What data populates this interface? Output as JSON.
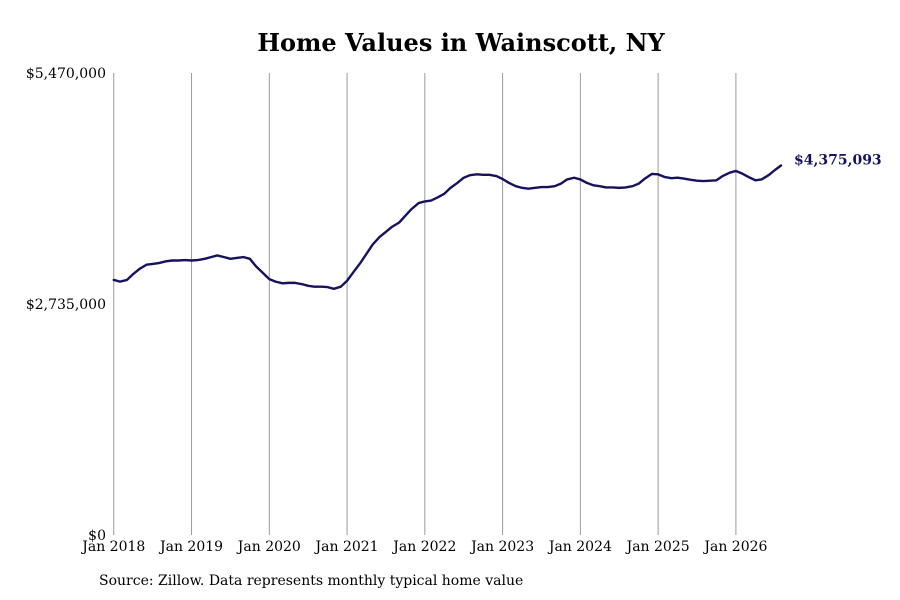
{
  "chart_data": {
    "type": "line",
    "title": "Home Values in Wainscott, NY",
    "xlabel": "",
    "ylabel": "",
    "ylim": [
      0,
      5470000
    ],
    "y_ticks": [
      "$5,470,000",
      "$2,735,000",
      "$0"
    ],
    "y_tick_values": [
      5470000,
      2735000,
      0
    ],
    "x_ticks": [
      "Jan 2018",
      "Jan 2019",
      "Jan 2020",
      "Jan 2021",
      "Jan 2022",
      "Jan 2023",
      "Jan 2024",
      "Jan 2025",
      "Jan 2026"
    ],
    "x_tick_values": [
      2018,
      2019,
      2020,
      2021,
      2022,
      2023,
      2024,
      2025,
      2026
    ],
    "xlim": [
      2017.9,
      2026.85
    ],
    "grid": "vertical",
    "line_color": "#15135e",
    "end_label": "$4,375,093",
    "series": [
      {
        "values": [
          [
            2018.0,
            3020000
          ],
          [
            2018.08,
            3000000
          ],
          [
            2018.17,
            3020000
          ],
          [
            2018.25,
            3090000
          ],
          [
            2018.33,
            3150000
          ],
          [
            2018.42,
            3200000
          ],
          [
            2018.5,
            3210000
          ],
          [
            2018.58,
            3220000
          ],
          [
            2018.67,
            3240000
          ],
          [
            2018.75,
            3250000
          ],
          [
            2018.83,
            3250000
          ],
          [
            2018.92,
            3255000
          ],
          [
            2019.0,
            3250000
          ],
          [
            2019.08,
            3255000
          ],
          [
            2019.17,
            3270000
          ],
          [
            2019.25,
            3290000
          ],
          [
            2019.33,
            3310000
          ],
          [
            2019.42,
            3290000
          ],
          [
            2019.5,
            3270000
          ],
          [
            2019.58,
            3280000
          ],
          [
            2019.67,
            3290000
          ],
          [
            2019.75,
            3270000
          ],
          [
            2019.83,
            3180000
          ],
          [
            2019.92,
            3100000
          ],
          [
            2020.0,
            3030000
          ],
          [
            2020.08,
            3000000
          ],
          [
            2020.17,
            2980000
          ],
          [
            2020.25,
            2985000
          ],
          [
            2020.33,
            2985000
          ],
          [
            2020.42,
            2970000
          ],
          [
            2020.5,
            2950000
          ],
          [
            2020.58,
            2940000
          ],
          [
            2020.67,
            2940000
          ],
          [
            2020.75,
            2935000
          ],
          [
            2020.83,
            2915000
          ],
          [
            2020.92,
            2940000
          ],
          [
            2021.0,
            3010000
          ],
          [
            2021.08,
            3110000
          ],
          [
            2021.17,
            3220000
          ],
          [
            2021.25,
            3330000
          ],
          [
            2021.33,
            3440000
          ],
          [
            2021.42,
            3530000
          ],
          [
            2021.5,
            3590000
          ],
          [
            2021.58,
            3650000
          ],
          [
            2021.67,
            3700000
          ],
          [
            2021.75,
            3780000
          ],
          [
            2021.83,
            3860000
          ],
          [
            2021.92,
            3930000
          ],
          [
            2022.0,
            3950000
          ],
          [
            2022.08,
            3960000
          ],
          [
            2022.17,
            4000000
          ],
          [
            2022.25,
            4040000
          ],
          [
            2022.33,
            4110000
          ],
          [
            2022.42,
            4170000
          ],
          [
            2022.5,
            4230000
          ],
          [
            2022.58,
            4260000
          ],
          [
            2022.67,
            4270000
          ],
          [
            2022.75,
            4265000
          ],
          [
            2022.83,
            4265000
          ],
          [
            2022.92,
            4250000
          ],
          [
            2023.0,
            4215000
          ],
          [
            2023.08,
            4170000
          ],
          [
            2023.17,
            4130000
          ],
          [
            2023.25,
            4110000
          ],
          [
            2023.33,
            4100000
          ],
          [
            2023.42,
            4110000
          ],
          [
            2023.5,
            4120000
          ],
          [
            2023.58,
            4120000
          ],
          [
            2023.67,
            4130000
          ],
          [
            2023.75,
            4160000
          ],
          [
            2023.83,
            4210000
          ],
          [
            2023.92,
            4230000
          ],
          [
            2024.0,
            4210000
          ],
          [
            2024.08,
            4170000
          ],
          [
            2024.17,
            4140000
          ],
          [
            2024.25,
            4130000
          ],
          [
            2024.33,
            4115000
          ],
          [
            2024.42,
            4115000
          ],
          [
            2024.5,
            4110000
          ],
          [
            2024.58,
            4115000
          ],
          [
            2024.67,
            4130000
          ],
          [
            2024.75,
            4160000
          ],
          [
            2024.83,
            4220000
          ],
          [
            2024.92,
            4275000
          ],
          [
            2025.0,
            4270000
          ],
          [
            2025.08,
            4240000
          ],
          [
            2025.17,
            4225000
          ],
          [
            2025.25,
            4230000
          ],
          [
            2025.33,
            4220000
          ],
          [
            2025.42,
            4205000
          ],
          [
            2025.5,
            4195000
          ],
          [
            2025.58,
            4190000
          ],
          [
            2025.67,
            4195000
          ],
          [
            2025.75,
            4200000
          ],
          [
            2025.83,
            4250000
          ],
          [
            2025.92,
            4290000
          ],
          [
            2026.0,
            4310000
          ],
          [
            2026.08,
            4280000
          ],
          [
            2026.17,
            4235000
          ],
          [
            2026.25,
            4200000
          ],
          [
            2026.33,
            4210000
          ],
          [
            2026.42,
            4260000
          ],
          [
            2026.5,
            4320000
          ],
          [
            2026.58,
            4375093
          ]
        ]
      }
    ]
  },
  "footer": {
    "source": "Source: Zillow. Data represents monthly typical home value"
  }
}
